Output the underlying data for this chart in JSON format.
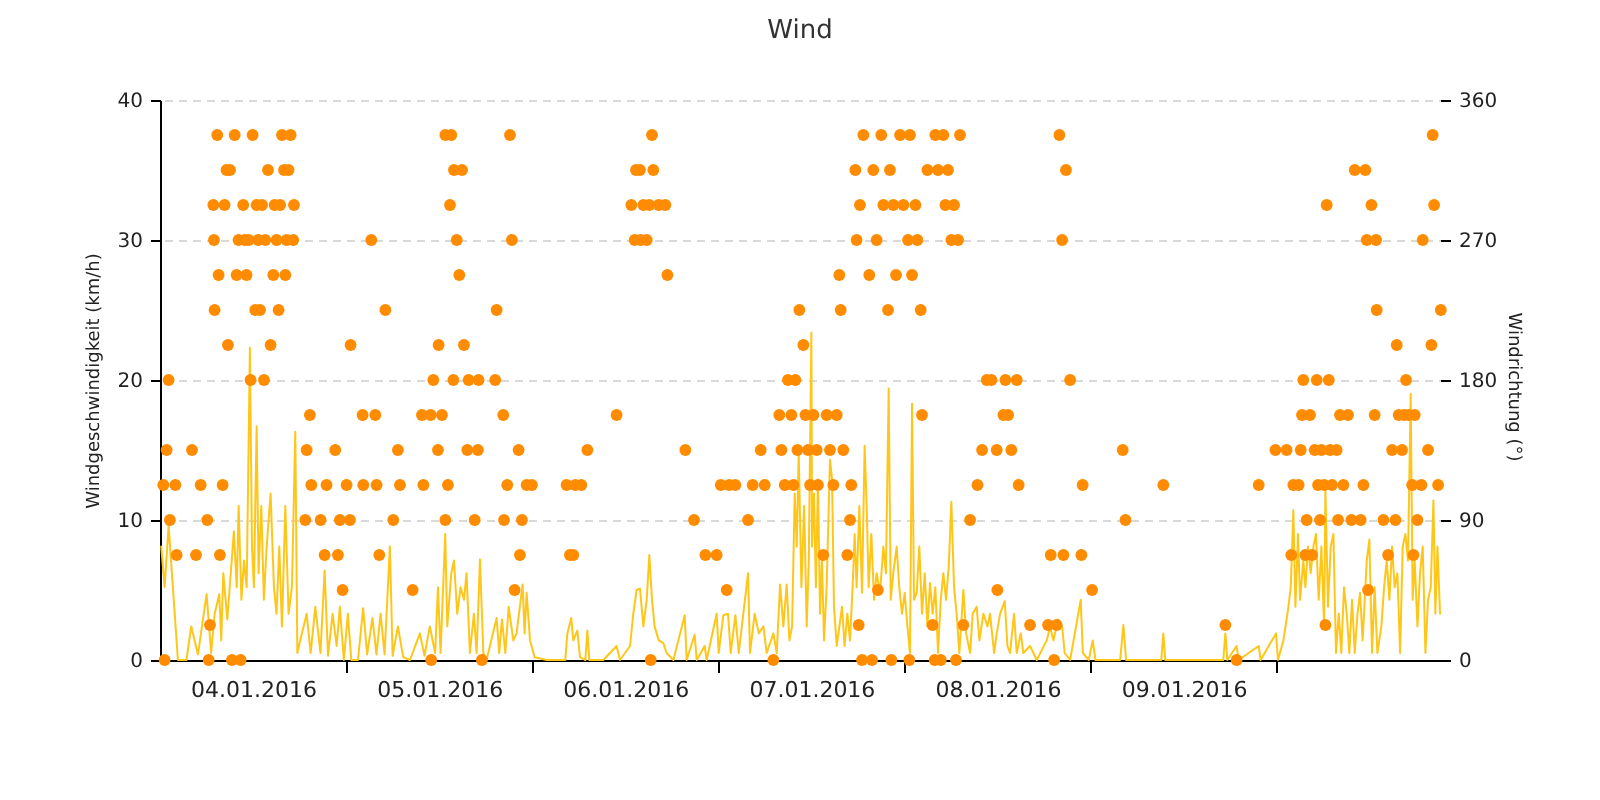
{
  "chart_data": {
    "type": "line",
    "title": "Wind",
    "ylabel": "Windgeschwindigkeit (km/h)",
    "y2label": "Windrichtung (°)",
    "xlim": [
      "2016-01-03T22:43",
      "2016-01-10T22:21"
    ],
    "xticks": [
      {
        "value": "2016-01-04T12:00",
        "label": "04.01.2016"
      },
      {
        "value": "2016-01-05T00:00",
        "label": null
      },
      {
        "value": "2016-01-05T12:00",
        "label": "05.01.2016"
      },
      {
        "value": "2016-01-06T00:00",
        "label": null
      },
      {
        "value": "2016-01-06T12:00",
        "label": "06.01.2016"
      },
      {
        "value": "2016-01-07T00:00",
        "label": null
      },
      {
        "value": "2016-01-07T12:00",
        "label": "07.01.2016"
      },
      {
        "value": "2016-01-08T00:00",
        "label": null
      },
      {
        "value": "2016-01-08T12:00",
        "label": "08.01.2016"
      },
      {
        "value": "2016-01-09T00:00",
        "label": null
      },
      {
        "value": "2016-01-09T12:00",
        "label": "09.01.2016"
      },
      {
        "value": "2016-01-10T00:00",
        "label": null
      }
    ],
    "ylim": [
      0,
      40
    ],
    "yticks": [
      0,
      10,
      20,
      30,
      40
    ],
    "y2lim": [
      0,
      360
    ],
    "y2ticks": [
      0,
      90,
      180,
      270,
      360
    ],
    "grid": "y",
    "series": [
      {
        "color": "#ffc61a",
        "x": [
          "2016-01-04T00:10",
          "2016-01-04T00:36",
          "2016-01-04T01:07",
          "2016-01-04T01:43",
          "2016-01-04T02:19",
          "2016-01-04T03:25",
          "2016-01-04T04:02",
          "2016-01-04T04:54",
          "2016-01-04T06:01",
          "2016-01-04T06:36",
          "2016-01-04T07:03",
          "2016-01-04T07:39",
          "2016-01-04T07:54",
          "2016-01-04T08:10",
          "2016-01-04T08:41",
          "2016-01-04T09:32",
          "2016-01-04T09:54",
          "2016-01-04T10:09",
          "2016-01-04T10:30",
          "2016-01-04T10:50",
          "2016-01-04T11:11",
          "2016-01-04T11:36",
          "2016-01-04T11:52",
          "2016-01-04T12:07",
          "2016-01-04T12:28",
          "2016-01-04T12:43",
          "2016-01-04T13:04",
          "2016-01-04T13:24",
          "2016-01-04T13:45",
          "2016-01-04T14:16",
          "2016-01-04T14:42",
          "2016-01-04T15:02",
          "2016-01-04T15:23",
          "2016-01-04T15:44",
          "2016-01-04T16:10",
          "2016-01-04T16:35",
          "2016-01-04T17:01",
          "2016-01-04T17:27",
          "2016-01-04T17:43",
          "2016-01-04T18:08",
          "2016-01-04T18:55",
          "2016-01-04T19:26",
          "2016-01-04T20:02",
          "2016-01-04T20:42",
          "2016-01-04T21:14",
          "2016-01-04T21:40",
          "2016-01-04T22:16",
          "2016-01-04T22:47",
          "2016-01-04T23:12",
          "2016-01-04T23:43",
          "2016-01-05T00:14",
          "2016-01-05T00:40",
          "2016-01-05T01:32",
          "2016-01-05T02:12",
          "2016-01-05T02:43",
          "2016-01-05T03:24",
          "2016-01-05T03:55",
          "2016-01-05T04:27",
          "2016-01-05T04:58",
          "2016-01-05T05:39",
          "2016-01-05T06:00",
          "2016-01-05T06:41",
          "2016-01-05T07:22",
          "2016-01-05T08:14",
          "2016-01-05T09:31",
          "2016-01-05T10:07",
          "2016-01-05T10:48",
          "2016-01-05T11:29",
          "2016-01-05T11:51",
          "2016-01-05T12:11",
          "2016-01-05T12:47",
          "2016-01-05T13:03",
          "2016-01-05T13:34",
          "2016-01-05T13:55",
          "2016-01-05T14:20",
          "2016-01-05T14:46",
          "2016-01-05T15:12",
          "2016-01-05T15:32",
          "2016-01-05T15:58",
          "2016-01-05T16:29",
          "2016-01-05T16:50",
          "2016-01-05T17:16",
          "2016-01-05T17:42",
          "2016-01-05T18:07",
          "2016-01-05T19:25",
          "2016-01-05T19:45",
          "2016-01-05T20:06",
          "2016-01-05T20:32",
          "2016-01-05T20:58",
          "2016-01-05T21:34",
          "2016-01-05T21:59",
          "2016-01-05T22:46",
          "2016-01-05T23:01",
          "2016-01-05T23:17",
          "2016-01-05T23:43",
          "2016-01-06T00:19",
          "2016-01-06T01:52",
          "2016-01-06T04:16",
          "2016-01-06T04:32",
          "2016-01-06T05:02",
          "2016-01-06T05:18",
          "2016-01-06T05:49",
          "2016-01-06T06:10",
          "2016-01-06T06:51",
          "2016-01-06T07:07",
          "2016-01-06T07:22",
          "2016-01-06T09:10",
          "2016-01-06T10:53",
          "2016-01-06T11:19",
          "2016-01-06T12:37",
          "2016-01-06T13:02",
          "2016-01-06T13:28",
          "2016-01-06T13:54",
          "2016-01-06T14:20",
          "2016-01-06T14:46",
          "2016-01-06T15:06",
          "2016-01-06T15:27",
          "2016-01-06T15:47",
          "2016-01-06T16:19",
          "2016-01-06T16:55",
          "2016-01-06T17:20",
          "2016-01-06T18:12",
          "2016-01-06T19:40",
          "2016-01-06T19:55",
          "2016-01-06T20:57",
          "2016-01-06T21:13",
          "2016-01-06T22:14",
          "2016-01-06T22:30",
          "2016-01-06T23:47",
          "2016-01-07T00:03",
          "2016-01-07T00:39",
          "2016-01-07T01:15",
          "2016-01-07T01:36",
          "2016-01-07T02:12",
          "2016-01-07T02:38",
          "2016-01-07T03:50",
          "2016-01-07T04:05",
          "2016-01-07T04:41",
          "2016-01-07T05:13",
          "2016-01-07T05:49",
          "2016-01-07T06:14",
          "2016-01-07T07:06",
          "2016-01-07T07:32",
          "2016-01-07T07:58",
          "2016-01-07T08:23",
          "2016-01-07T08:49",
          "2016-01-07T09:10",
          "2016-01-07T09:31",
          "2016-01-07T09:51",
          "2016-01-07T10:07",
          "2016-01-07T10:22",
          "2016-01-07T10:43",
          "2016-01-07T11:04",
          "2016-01-07T11:24",
          "2016-01-07T11:40",
          "2016-01-07T12:00",
          "2016-01-07T12:05",
          "2016-01-07T12:20",
          "2016-01-07T12:35",
          "2016-01-07T12:51",
          "2016-01-07T13:07",
          "2016-01-07T13:22",
          "2016-01-07T13:38",
          "2016-01-07T13:58",
          "2016-01-07T14:24",
          "2016-01-07T14:40",
          "2016-01-07T14:55",
          "2016-01-07T15:16",
          "2016-01-07T15:57",
          "2016-01-07T16:17",
          "2016-01-07T16:38",
          "2016-01-07T16:59",
          "2016-01-07T17:19",
          "2016-01-07T17:35",
          "2016-01-07T17:50",
          "2016-01-07T18:11",
          "2016-01-07T18:32",
          "2016-01-07T18:52",
          "2016-01-07T19:08",
          "2016-01-07T19:23",
          "2016-01-07T19:44",
          "2016-01-07T20:05",
          "2016-01-07T20:25",
          "2016-01-07T20:51",
          "2016-01-07T21:17",
          "2016-01-07T21:37",
          "2016-01-07T21:58",
          "2016-01-07T22:14",
          "2016-01-07T22:34",
          "2016-01-07T23:00",
          "2016-01-07T23:20",
          "2016-01-07T23:41",
          "2016-01-08T00:02",
          "2016-01-08T00:23",
          "2016-01-08T00:43",
          "2016-01-08T00:59",
          "2016-01-08T01:14",
          "2016-01-08T01:35",
          "2016-01-08T01:55",
          "2016-01-08T02:16",
          "2016-01-08T02:37",
          "2016-01-08T02:58",
          "2016-01-08T03:18",
          "2016-01-08T03:38",
          "2016-01-08T03:59",
          "2016-01-08T04:20",
          "2016-01-08T04:41",
          "2016-01-08T05:01",
          "2016-01-08T05:22",
          "2016-01-08T05:43",
          "2016-01-08T06:03",
          "2016-01-08T06:24",
          "2016-01-08T06:44",
          "2016-01-08T07:05",
          "2016-01-08T07:36",
          "2016-01-08T07:57",
          "2016-01-08T08:28",
          "2016-01-08T08:48",
          "2016-01-08T09:19",
          "2016-01-08T09:40",
          "2016-01-08T10:11",
          "2016-01-08T10:42",
          "2016-01-08T11:02",
          "2016-01-08T11:34",
          "2016-01-08T11:54",
          "2016-01-08T12:20",
          "2016-01-08T12:56",
          "2016-01-08T13:17",
          "2016-01-08T13:37",
          "2016-01-08T14:08",
          "2016-01-08T14:29",
          "2016-01-08T15:00",
          "2016-01-08T15:20",
          "2016-01-08T16:12",
          "2016-01-08T17:04",
          "2016-01-08T18:21",
          "2016-01-08T18:47",
          "2016-01-08T19:13",
          "2016-01-08T19:49",
          "2016-01-08T20:20",
          "2016-01-08T20:40",
          "2016-01-08T21:22",
          "2016-01-08T22:44",
          "2016-01-08T23:00",
          "2016-01-08T23:46",
          "2016-01-09T00:17",
          "2016-01-09T00:38",
          "2016-01-09T03:49",
          "2016-01-09T04:14",
          "2016-01-09T04:35",
          "2016-01-09T09:07",
          "2016-01-09T09:23",
          "2016-01-09T09:38",
          "2016-01-09T17:07",
          "2016-01-09T17:23",
          "2016-01-09T17:38",
          "2016-01-09T18:50",
          "2016-01-09T19:06",
          "2016-01-09T21:41",
          "2016-01-09T21:56",
          "2016-01-09T23:55",
          "2016-01-10T00:10",
          "2016-01-10T00:52",
          "2016-01-10T01:28",
          "2016-01-10T01:49",
          "2016-01-10T02:09",
          "2016-01-10T02:25",
          "2016-01-10T02:45",
          "2016-01-10T03:01",
          "2016-01-10T03:26",
          "2016-01-10T03:42",
          "2016-01-10T04:02",
          "2016-01-10T04:23",
          "2016-01-10T04:44",
          "2016-01-10T05:04",
          "2016-01-10T05:25",
          "2016-01-10T05:46",
          "2016-01-10T06:07",
          "2016-01-10T06:17",
          "2016-01-10T06:37",
          "2016-01-10T06:58",
          "2016-01-10T07:19",
          "2016-01-10T07:39",
          "2016-01-10T08:00",
          "2016-01-10T08:20",
          "2016-01-10T08:41",
          "2016-01-10T09:02",
          "2016-01-10T09:22",
          "2016-01-10T09:43",
          "2016-01-10T10:04",
          "2016-01-10T10:25",
          "2016-01-10T10:45",
          "2016-01-10T11:05",
          "2016-01-10T11:37",
          "2016-01-10T11:57",
          "2016-01-10T12:18",
          "2016-01-10T12:38",
          "2016-01-10T12:59",
          "2016-01-10T13:30",
          "2016-01-10T13:51",
          "2016-01-10T14:11",
          "2016-01-10T14:32",
          "2016-01-10T14:53",
          "2016-01-10T15:13",
          "2016-01-10T15:34",
          "2016-01-10T15:55",
          "2016-01-10T16:15",
          "2016-01-10T16:36",
          "2016-01-10T16:56",
          "2016-01-10T17:17",
          "2016-01-10T17:32",
          "2016-01-10T17:48",
          "2016-01-10T18:09",
          "2016-01-10T18:29",
          "2016-01-10T18:50",
          "2016-01-10T19:11",
          "2016-01-10T19:31",
          "2016-01-10T19:52",
          "2016-01-10T20:13",
          "2016-01-10T20:28",
          "2016-01-10T20:44",
          "2016-01-10T21:04"
        ],
        "values": [
          8.1,
          5.2,
          9.6,
          4.8,
          0,
          0,
          2.4,
          0.4,
          4.7,
          0.5,
          3.3,
          4.7,
          1.4,
          6.2,
          2.9,
          9.2,
          5.2,
          11,
          4.3,
          7.1,
          5.2,
          22.3,
          8.1,
          5.2,
          16.7,
          6.2,
          11,
          4.3,
          8,
          11.9,
          5.2,
          3.3,
          8.1,
          2.4,
          11,
          3.3,
          5.2,
          16.3,
          0.5,
          1.5,
          3.3,
          0.5,
          3.8,
          0.5,
          6.4,
          0.3,
          3.3,
          1,
          3.8,
          0,
          3.3,
          0,
          0,
          3.7,
          0.4,
          3,
          0.4,
          3.3,
          0.4,
          8.1,
          0.3,
          2.4,
          0.2,
          0,
          1.9,
          0.3,
          2.4,
          0.5,
          5.2,
          0.5,
          9,
          2.4,
          6.2,
          7.1,
          3.3,
          5.2,
          4.3,
          6.2,
          0.5,
          3.3,
          0.5,
          7.2,
          0.5,
          0,
          3,
          0.5,
          2.9,
          0.5,
          3.8,
          1.4,
          1.9,
          5.4,
          1.9,
          4.8,
          1.4,
          0.2,
          0,
          0,
          1.9,
          3,
          1.4,
          2.1,
          0.2,
          0,
          2.1,
          0,
          0,
          1,
          0,
          1,
          3.3,
          5,
          5.1,
          2.4,
          4.3,
          7.5,
          4.3,
          2.4,
          1.4,
          1.2,
          0.5,
          0,
          3.2,
          0,
          1.8,
          0,
          1,
          0,
          3.3,
          0.5,
          3.2,
          3.3,
          0.5,
          3.2,
          0.5,
          6.2,
          0.5,
          3.3,
          1.9,
          2.4,
          0.5,
          1.9,
          0.5,
          5.4,
          2.4,
          5.4,
          1.4,
          2.4,
          11.9,
          8.1,
          14.8,
          5.2,
          11,
          2.4,
          7.1,
          23.4,
          8.1,
          11.9,
          5.2,
          12.9,
          3.3,
          7.1,
          1.4,
          5.2,
          14.3,
          12.9,
          3.8,
          1,
          3.8,
          1,
          3.3,
          1.4,
          5.2,
          9,
          5.2,
          11,
          4.8,
          15.3,
          11,
          5.2,
          9,
          4.3,
          6.2,
          4.8,
          8.1,
          6.2,
          19.4,
          4.3,
          6.2,
          8.1,
          5.2,
          3.3,
          4.8,
          2.4,
          0.5,
          18.3,
          4.3,
          4.8,
          8.1,
          3.3,
          6.2,
          2.4,
          5.5,
          3.3,
          5.2,
          0.5,
          4.3,
          6.2,
          4.3,
          6.7,
          11.3,
          5.2,
          3.3,
          0.5,
          5,
          1.9,
          0.5,
          3.3,
          3.8,
          1.4,
          3.3,
          2.4,
          3.3,
          0.5,
          1.9,
          3.3,
          4.2,
          1,
          0.5,
          3.3,
          0.5,
          1.9,
          0.5,
          1,
          0,
          1.4,
          2.4,
          1.4,
          2.9,
          2.4,
          0.5,
          0,
          4.3,
          0.5,
          0,
          1.4,
          0,
          0,
          2.5,
          0,
          0,
          1.9,
          0,
          0,
          1.9,
          0,
          1,
          0,
          1,
          0,
          1.9,
          0,
          1.4,
          3.6,
          5.2,
          10.7,
          3.8,
          9,
          4.3,
          7.1,
          5.2,
          8.1,
          6.2,
          8.1,
          9,
          4.3,
          8.1,
          2.4,
          12.2,
          3.8,
          8.1,
          9,
          0.5,
          3.3,
          0.5,
          5.2,
          3.3,
          0.5,
          4.3,
          0.5,
          3.3,
          4.8,
          1.4,
          7.1,
          8.6,
          0.5,
          5.2,
          0.5,
          2.4,
          5.2,
          7.1,
          4.3,
          8.1,
          5.2,
          6.2,
          0.5,
          8.1,
          9,
          7.1,
          19,
          4.3,
          7.1,
          2.4,
          6.2,
          8.1,
          0.5,
          4.3,
          5.2,
          11.4,
          3.3,
          8.1,
          3.3
        ]
      },
      {
        "type": "scatter",
        "axis": "y2",
        "color": "#ff8c00",
        "marker": "circle",
        "x": [
          "2016-01-04T00:26",
          "2016-01-04T00:36",
          "2016-01-04T00:52",
          "2016-01-04T01:07",
          "2016-01-04T01:17",
          "2016-01-04T01:59",
          "2016-01-04T02:09",
          "2016-01-04T04:08",
          "2016-01-04T04:39",
          "2016-01-04T05:15",
          "2016-01-04T06:06",
          "2016-01-04T06:17",
          "2016-01-04T06:27",
          "2016-01-04T06:53",
          "2016-01-04T06:58",
          "2016-01-04T07:03",
          "2016-01-04T07:23",
          "2016-01-04T07:34",
          "2016-01-04T07:44",
          "2016-01-04T08:05",
          "2016-01-04T08:20",
          "2016-01-04T08:46",
          "2016-01-04T09:02",
          "2016-01-04T09:17",
          "2016-01-04T09:38",
          "2016-01-04T09:53",
          "2016-01-04T10:08",
          "2016-01-04T10:24",
          "2016-01-04T10:44",
          "2016-01-04T11:10",
          "2016-01-04T11:26",
          "2016-01-04T11:41",
          "2016-01-04T11:57",
          "2016-01-04T12:17",
          "2016-01-04T12:28",
          "2016-01-04T12:54",
          "2016-01-04T13:25",
          "2016-01-04T13:35",
          "2016-01-04T13:56",
          "2016-01-04T14:16",
          "2016-01-04T14:37",
          "2016-01-04T14:47",
          "2016-01-04T15:02",
          "2016-01-04T15:18",
          "2016-01-04T15:44",
          "2016-01-04T16:10",
          "2016-01-04T16:20",
          "2016-01-04T16:35",
          "2016-01-04T16:51",
          "2016-01-04T17:11",
          "2016-01-04T17:17",
          "2016-01-04T18:44",
          "2016-01-04T18:55",
          "2016-01-04T19:20",
          "2016-01-04T19:31",
          "2016-01-04T20:43",
          "2016-01-04T21:14",
          "2016-01-04T21:29",
          "2016-01-04T22:36",
          "2016-01-04T22:57",
          "2016-01-04T23:12",
          "2016-01-04T23:33",
          "2016-01-05T00:04",
          "2016-01-05T00:30",
          "2016-01-05T00:35",
          "2016-01-05T02:08",
          "2016-01-05T02:13",
          "2016-01-05T03:15",
          "2016-01-05T03:46",
          "2016-01-05T03:56",
          "2016-01-05T04:17",
          "2016-01-05T05:04",
          "2016-01-05T06:05",
          "2016-01-05T06:41",
          "2016-01-05T06:57",
          "2016-01-05T08:35",
          "2016-01-05T09:47",
          "2016-01-05T09:58",
          "2016-01-05T10:54",
          "2016-01-05T10:59",
          "2016-01-05T11:15",
          "2016-01-05T11:51",
          "2016-01-05T11:56",
          "2016-01-05T12:22",
          "2016-01-05T12:48",
          "2016-01-05T12:48",
          "2016-01-05T13:08",
          "2016-01-05T13:24",
          "2016-01-05T13:34",
          "2016-01-05T13:50",
          "2016-01-05T13:55",
          "2016-01-05T14:16",
          "2016-01-05T14:36",
          "2016-01-05T14:57",
          "2016-01-05T15:12",
          "2016-01-05T15:38",
          "2016-01-05T15:48",
          "2016-01-05T16:35",
          "2016-01-05T17:00",
          "2016-01-05T17:05",
          "2016-01-05T17:31",
          "2016-01-05T19:14",
          "2016-01-05T19:25",
          "2016-01-05T20:16",
          "2016-01-05T20:22",
          "2016-01-05T20:47",
          "2016-01-05T21:08",
          "2016-01-05T21:23",
          "2016-01-05T21:44",
          "2016-01-05T22:15",
          "2016-01-05T22:25",
          "2016-01-05T22:41",
          "2016-01-05T23:17",
          "2016-01-05T23:58",
          "2016-01-06T04:26",
          "2016-01-06T04:52",
          "2016-01-06T05:18",
          "2016-01-06T05:34",
          "2016-01-06T06:20",
          "2016-01-06T07:07",
          "2016-01-06T10:53",
          "2016-01-06T12:47",
          "2016-01-06T13:13",
          "2016-01-06T13:23",
          "2016-01-06T13:54",
          "2016-01-06T13:59",
          "2016-01-06T14:20",
          "2016-01-06T14:46",
          "2016-01-06T15:06",
          "2016-01-06T15:17",
          "2016-01-06T15:27",
          "2016-01-06T15:37",
          "2016-01-06T16:19",
          "2016-01-06T17:10",
          "2016-01-06T17:26",
          "2016-01-06T19:45",
          "2016-01-06T20:52",
          "2016-01-06T22:20",
          "2016-01-06T23:47",
          "2016-01-07T00:19",
          "2016-01-07T01:05",
          "2016-01-07T01:25",
          "2016-01-07T02:12",
          "2016-01-07T03:50",
          "2016-01-07T04:26",
          "2016-01-07T05:28",
          "2016-01-07T05:59",
          "2016-01-07T07:06",
          "2016-01-07T07:52",
          "2016-01-07T08:08",
          "2016-01-07T08:34",
          "2016-01-07T08:59",
          "2016-01-07T09:25",
          "2016-01-07T09:41",
          "2016-01-07T09:56",
          "2016-01-07T10:12",
          "2016-01-07T10:27",
          "2016-01-07T10:58",
          "2016-01-07T11:14",
          "2016-01-07T11:34",
          "2016-01-07T11:50",
          "2016-01-07T12:16",
          "2016-01-07T12:41",
          "2016-01-07T12:51",
          "2016-01-07T13:32",
          "2016-01-07T13:58",
          "2016-01-07T14:24",
          "2016-01-07T14:50",
          "2016-01-07T15:16",
          "2016-01-07T15:36",
          "2016-01-07T15:47",
          "2016-01-07T16:07",
          "2016-01-07T16:38",
          "2016-01-07T16:59",
          "2016-01-07T17:09",
          "2016-01-07T17:40",
          "2016-01-07T17:50",
          "2016-01-07T18:06",
          "2016-01-07T18:16",
          "2016-01-07T18:32",
          "2016-01-07T18:42",
          "2016-01-07T19:28",
          "2016-01-07T19:49",
          "2016-01-07T19:59",
          "2016-01-07T20:25",
          "2016-01-07T20:35",
          "2016-01-07T21:01",
          "2016-01-07T21:17",
          "2016-01-07T21:53",
          "2016-01-07T22:08",
          "2016-01-07T22:19",
          "2016-01-07T22:34",
          "2016-01-07T22:55",
          "2016-01-07T23:26",
          "2016-01-07T23:52",
          "2016-01-08T00:28",
          "2016-01-08T00:38",
          "2016-01-08T00:43",
          "2016-01-08T00:59",
          "2016-01-08T01:25",
          "2016-01-08T01:40",
          "2016-01-08T02:06",
          "2016-01-08T02:16",
          "2016-01-08T02:58",
          "2016-01-08T03:38",
          "2016-01-08T03:54",
          "2016-01-08T03:59",
          "2016-01-08T04:20",
          "2016-01-08T04:41",
          "2016-01-08T05:01",
          "2016-01-08T05:17",
          "2016-01-08T05:37",
          "2016-01-08T06:03",
          "2016-01-08T06:24",
          "2016-01-08T06:39",
          "2016-01-08T06:55",
          "2016-01-08T07:10",
          "2016-01-08T07:36",
          "2016-01-08T08:28",
          "2016-01-08T09:25",
          "2016-01-08T10:01",
          "2016-01-08T10:37",
          "2016-01-08T11:13",
          "2016-01-08T11:54",
          "2016-01-08T11:59",
          "2016-01-08T12:46",
          "2016-01-08T13:01",
          "2016-01-08T13:22",
          "2016-01-08T13:47",
          "2016-01-08T14:29",
          "2016-01-08T14:44",
          "2016-01-08T16:12",
          "2016-01-08T18:31",
          "2016-01-08T18:52",
          "2016-01-08T19:18",
          "2016-01-08T19:38",
          "2016-01-08T19:59",
          "2016-01-08T20:20",
          "2016-01-08T20:30",
          "2016-01-08T20:50",
          "2016-01-08T21:22",
          "2016-01-08T22:49",
          "2016-01-08T22:59",
          "2016-01-09T00:12",
          "2016-01-09T04:09",
          "2016-01-09T04:30",
          "2016-01-09T09:23",
          "2016-01-09T17:23",
          "2016-01-09T18:50",
          "2016-01-09T21:41",
          "2016-01-09T23:50",
          "2016-01-10T01:17",
          "2016-01-10T01:53",
          "2016-01-10T02:09",
          "2016-01-10T02:50",
          "2016-01-10T03:06",
          "2016-01-10T03:16",
          "2016-01-10T03:26",
          "2016-01-10T03:42",
          "2016-01-10T03:52",
          "2016-01-10T04:18",
          "2016-01-10T04:34",
          "2016-01-10T04:54",
          "2016-01-10T05:10",
          "2016-01-10T05:20",
          "2016-01-10T05:35",
          "2016-01-10T05:46",
          "2016-01-10T06:07",
          "2016-01-10T06:17",
          "2016-01-10T06:27",
          "2016-01-10T06:43",
          "2016-01-10T06:53",
          "2016-01-10T07:08",
          "2016-01-10T07:44",
          "2016-01-10T07:55",
          "2016-01-10T08:10",
          "2016-01-10T08:36",
          "2016-01-10T09:12",
          "2016-01-10T09:38",
          "2016-01-10T10:04",
          "2016-01-10T10:50",
          "2016-01-10T11:11",
          "2016-01-10T11:26",
          "2016-01-10T11:37",
          "2016-01-10T11:47",
          "2016-01-10T12:13",
          "2016-01-10T12:38",
          "2016-01-10T12:49",
          "2016-01-10T12:54",
          "2016-01-10T13:46",
          "2016-01-10T14:22",
          "2016-01-10T14:53",
          "2016-01-10T15:19",
          "2016-01-10T15:29",
          "2016-01-10T15:44",
          "2016-01-10T16:10",
          "2016-01-10T16:26",
          "2016-01-10T16:41",
          "2016-01-10T17:02",
          "2016-01-10T17:28",
          "2016-01-10T17:38",
          "2016-01-10T17:48",
          "2016-01-10T18:09",
          "2016-01-10T18:40",
          "2016-01-10T18:50",
          "2016-01-10T19:31",
          "2016-01-10T19:57",
          "2016-01-10T20:07",
          "2016-01-10T20:18",
          "2016-01-10T20:49",
          "2016-01-10T21:10",
          "2016-01-04T08:35",
          "2016-01-04T10:55",
          "2016-01-04T12:40",
          "2016-01-04T13:10",
          "2016-01-04T15:30",
          "2016-01-04T16:00"
        ],
        "values": [
          112.5,
          0,
          135,
          180,
          90,
          112.5,
          67.5,
          135,
          67.5,
          112.5,
          90,
          0,
          22.5,
          292.5,
          270,
          225,
          337.5,
          247.5,
          67.5,
          112.5,
          292.5,
          202.5,
          315,
          0,
          337.5,
          247.5,
          270,
          0,
          292.5,
          247.5,
          270,
          180,
          337.5,
          225,
          292.5,
          225,
          180,
          270,
          315,
          202.5,
          247.5,
          292.5,
          270,
          225,
          337.5,
          247.5,
          270,
          315,
          337.5,
          270,
          292.5,
          90,
          135,
          157.5,
          112.5,
          90,
          67.5,
          112.5,
          135,
          67.5,
          90,
          45,
          112.5,
          90,
          202.5,
          157.5,
          112.5,
          270,
          157.5,
          112.5,
          67.5,
          225,
          90,
          135,
          112.5,
          45,
          157.5,
          112.5,
          157.5,
          0,
          180,
          135,
          202.5,
          157.5,
          90,
          337.5,
          112.5,
          292.5,
          337.5,
          180,
          315,
          270,
          247.5,
          315,
          202.5,
          135,
          180,
          90,
          135,
          180,
          0,
          180,
          225,
          157.5,
          90,
          112.5,
          337.5,
          270,
          45,
          135,
          67.5,
          90,
          112.5,
          112.5,
          112.5,
          67.5,
          67.5,
          112.5,
          112.5,
          135,
          157.5,
          292.5,
          270,
          315,
          315,
          270,
          292.5,
          270,
          292.5,
          0,
          337.5,
          315,
          292.5,
          292.5,
          247.5,
          135,
          90,
          67.5,
          67.5,
          112.5,
          45,
          112.5,
          112.5,
          90,
          112.5,
          135,
          112.5,
          0,
          157.5,
          135,
          112.5,
          180,
          157.5,
          112.5,
          180,
          135,
          225,
          202.5,
          157.5,
          135,
          112.5,
          157.5,
          135,
          112.5,
          67.5,
          157.5,
          135,
          112.5,
          157.5,
          247.5,
          225,
          135,
          67.5,
          90,
          112.5,
          315,
          270,
          22.5,
          292.5,
          0,
          337.5,
          247.5,
          0,
          315,
          270,
          45,
          337.5,
          292.5,
          225,
          315,
          0,
          292.5,
          247.5,
          337.5,
          292.5,
          270,
          0,
          337.5,
          247.5,
          292.5,
          270,
          225,
          157.5,
          315,
          22.5,
          0,
          337.5,
          315,
          0,
          337.5,
          292.5,
          315,
          270,
          292.5,
          0,
          270,
          337.5,
          22.5,
          90,
          112.5,
          135,
          180,
          180,
          135,
          45,
          157.5,
          180,
          157.5,
          135,
          180,
          112.5,
          22.5,
          22.5,
          67.5,
          0,
          22.5,
          337.5,
          270,
          67.5,
          315,
          180,
          67.5,
          112.5,
          45,
          135,
          90,
          112.5,
          22.5,
          0,
          112.5,
          135,
          135,
          67.5,
          112.5,
          112.5,
          135,
          157.5,
          180,
          67.5,
          90,
          157.5,
          67.5,
          135,
          180,
          112.5,
          90,
          135,
          112.5,
          22.5,
          292.5,
          180,
          135,
          112.5,
          135,
          90,
          157.5,
          112.5,
          157.5,
          90,
          315,
          90,
          112.5,
          315,
          270,
          45,
          292.5,
          157.5,
          270,
          225,
          90,
          67.5,
          135,
          90,
          202.5,
          157.5,
          135,
          157.5,
          180,
          157.5,
          112.5,
          67.5,
          157.5,
          90,
          112.5,
          270,
          135,
          202.5,
          337.5,
          292.5,
          112.5,
          225,
          315,
          270,
          270,
          292.5,
          292.5,
          315
        ]
      }
    ]
  }
}
